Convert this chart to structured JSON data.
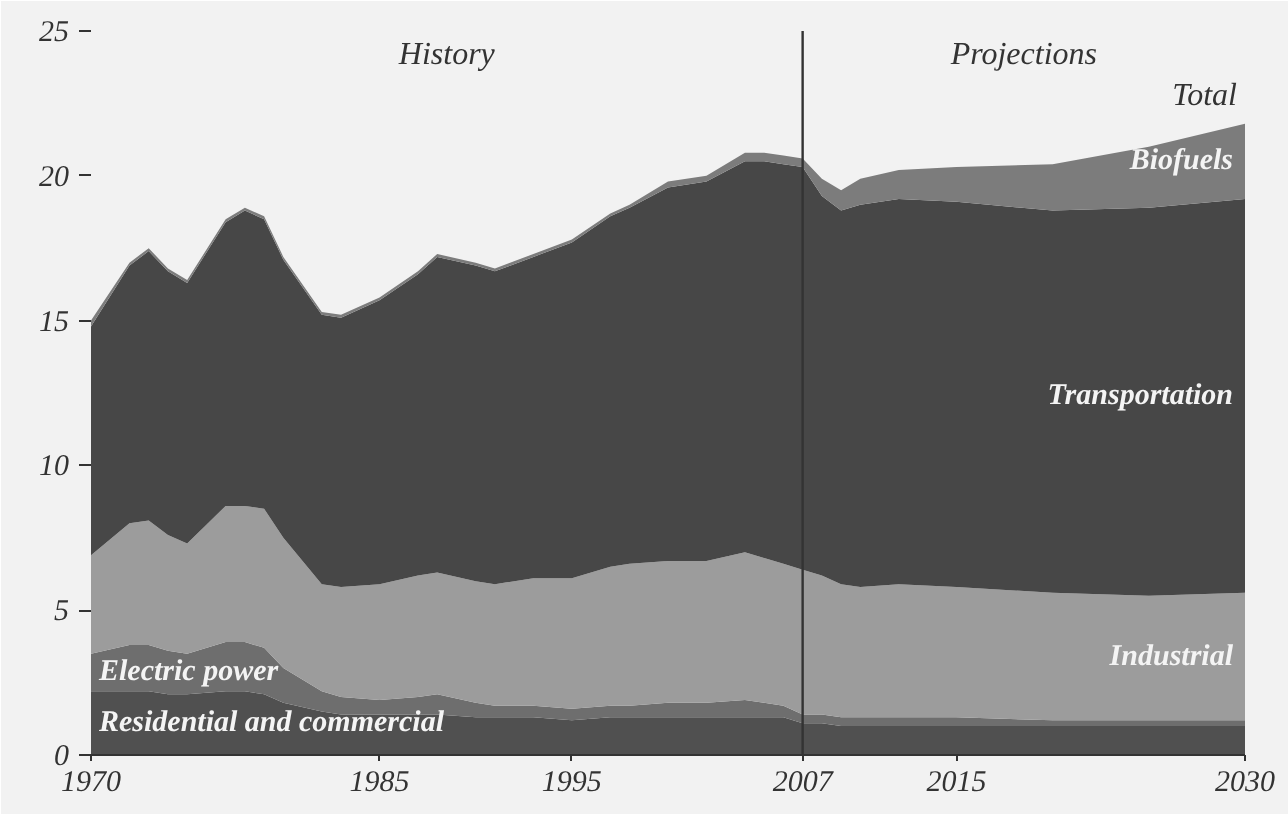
{
  "chart_data": {
    "type": "area",
    "stacked": true,
    "x": [
      1970,
      1972,
      1973,
      1974,
      1975,
      1977,
      1978,
      1979,
      1980,
      1982,
      1983,
      1985,
      1987,
      1988,
      1990,
      1991,
      1993,
      1995,
      1997,
      1998,
      2000,
      2002,
      2004,
      2005,
      2006,
      2007,
      2008,
      2009,
      2010,
      2012,
      2015,
      2020,
      2025,
      2030
    ],
    "series": [
      {
        "name": "Residential and commercial",
        "color": "#505050",
        "values": [
          2.2,
          2.2,
          2.2,
          2.1,
          2.1,
          2.2,
          2.2,
          2.1,
          1.8,
          1.5,
          1.4,
          1.4,
          1.4,
          1.4,
          1.3,
          1.3,
          1.3,
          1.2,
          1.3,
          1.3,
          1.3,
          1.3,
          1.3,
          1.3,
          1.3,
          1.1,
          1.1,
          1.0,
          1.0,
          1.0,
          1.0,
          1.0,
          1.0,
          1.0
        ]
      },
      {
        "name": "Electric power",
        "color": "#6e6e6e",
        "values": [
          1.3,
          1.6,
          1.6,
          1.5,
          1.4,
          1.7,
          1.7,
          1.6,
          1.2,
          0.7,
          0.6,
          0.5,
          0.6,
          0.7,
          0.5,
          0.4,
          0.4,
          0.4,
          0.4,
          0.4,
          0.5,
          0.5,
          0.6,
          0.5,
          0.4,
          0.3,
          0.3,
          0.3,
          0.3,
          0.3,
          0.3,
          0.2,
          0.2,
          0.2
        ]
      },
      {
        "name": "Industrial",
        "color": "#9c9c9c",
        "values": [
          3.4,
          4.2,
          4.3,
          4.0,
          3.8,
          4.7,
          4.7,
          4.8,
          4.5,
          3.7,
          3.8,
          4.0,
          4.2,
          4.2,
          4.2,
          4.2,
          4.4,
          4.5,
          4.8,
          4.9,
          4.9,
          4.9,
          5.1,
          5.0,
          4.9,
          5.0,
          4.8,
          4.6,
          4.5,
          4.6,
          4.5,
          4.4,
          4.3,
          4.4
        ]
      },
      {
        "name": "Transportation",
        "color": "#474747",
        "values": [
          7.9,
          8.9,
          9.3,
          9.1,
          9.0,
          9.8,
          10.2,
          10.0,
          9.6,
          9.3,
          9.3,
          9.8,
          10.4,
          10.9,
          10.9,
          10.8,
          11.1,
          11.6,
          12.1,
          12.3,
          12.9,
          13.1,
          13.5,
          13.7,
          13.8,
          13.9,
          13.1,
          12.9,
          13.2,
          13.3,
          13.3,
          13.2,
          13.4,
          13.6
        ]
      },
      {
        "name": "Biofuels",
        "color": "#7c7c7c",
        "values": [
          0.2,
          0.1,
          0.1,
          0.1,
          0.1,
          0.1,
          0.1,
          0.1,
          0.1,
          0.1,
          0.1,
          0.1,
          0.1,
          0.1,
          0.1,
          0.1,
          0.1,
          0.1,
          0.1,
          0.1,
          0.2,
          0.2,
          0.3,
          0.3,
          0.3,
          0.3,
          0.6,
          0.7,
          0.9,
          1.0,
          1.2,
          1.6,
          2.1,
          2.6
        ]
      }
    ],
    "xlim": [
      1970,
      2030
    ],
    "xticks": [
      1970,
      1985,
      1995,
      2007,
      2015,
      2030
    ],
    "ylim": [
      0,
      25
    ],
    "yticks": [
      0,
      5,
      10,
      15,
      20,
      25
    ],
    "grid": false,
    "legend": false,
    "ref_lines": [
      {
        "axis": "x",
        "value": 2007,
        "color": "#333333"
      }
    ],
    "annotations": [
      "History",
      "Projections",
      "Total"
    ]
  }
}
